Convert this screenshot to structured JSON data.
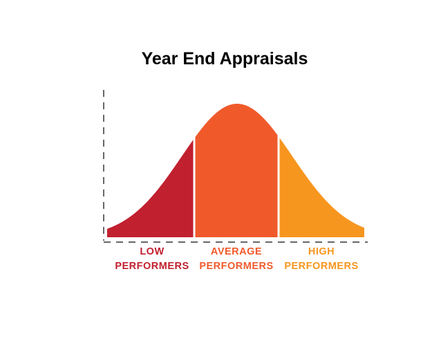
{
  "title": "Year End Appraisals",
  "segments": [
    {
      "lines": [
        "LOW",
        "PERFORMERS"
      ],
      "color": "#c1202f"
    },
    {
      "lines": [
        "AVERAGE",
        "PERFORMERS"
      ],
      "color": "#f05a2b"
    },
    {
      "lines": [
        "HIGH",
        "PERFORMERS"
      ],
      "color": "#f7961f"
    }
  ]
}
